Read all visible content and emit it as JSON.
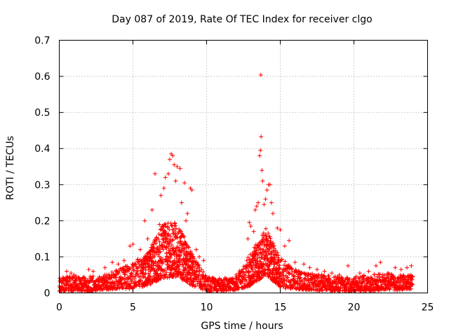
{
  "chart_data": {
    "type": "scatter",
    "title": "Day 087 of 2019, Rate Of TEC Index for receiver clgo",
    "xlabel": "GPS time / hours",
    "ylabel": "ROTI / TECUs",
    "xlim": [
      0,
      25
    ],
    "ylim": [
      0,
      0.7
    ],
    "xticks": [
      0,
      5,
      10,
      15,
      20,
      25
    ],
    "yticks": [
      0,
      0.1,
      0.2,
      0.3,
      0.4,
      0.5,
      0.6,
      0.7
    ],
    "xtick_labels": [
      "0",
      "5",
      "10",
      "15",
      "20",
      "25"
    ],
    "ytick_labels": [
      "0",
      "0.1",
      "0.2",
      "0.3",
      "0.4",
      "0.5",
      "0.6",
      "0.7"
    ],
    "grid": true,
    "marker": "+",
    "color": "#ff0000",
    "series": [
      {
        "name": "ROTI",
        "points": [
          [
            0.1,
            0.035
          ],
          [
            0.5,
            0.06
          ],
          [
            0.8,
            0.055
          ],
          [
            1.0,
            0.05
          ],
          [
            2.0,
            0.065
          ],
          [
            2.3,
            0.06
          ],
          [
            3.1,
            0.07
          ],
          [
            3.6,
            0.085
          ],
          [
            4.0,
            0.08
          ],
          [
            4.4,
            0.09
          ],
          [
            4.8,
            0.13
          ],
          [
            5.0,
            0.135
          ],
          [
            5.5,
            0.12
          ],
          [
            5.8,
            0.2
          ],
          [
            6.0,
            0.15
          ],
          [
            6.3,
            0.23
          ],
          [
            6.5,
            0.33
          ],
          [
            6.8,
            0.19
          ],
          [
            6.9,
            0.27
          ],
          [
            7.1,
            0.29
          ],
          [
            7.2,
            0.32
          ],
          [
            7.4,
            0.33
          ],
          [
            7.5,
            0.37
          ],
          [
            7.6,
            0.385
          ],
          [
            7.7,
            0.38
          ],
          [
            7.8,
            0.355
          ],
          [
            7.9,
            0.31
          ],
          [
            8.0,
            0.35
          ],
          [
            8.2,
            0.345
          ],
          [
            8.3,
            0.25
          ],
          [
            8.5,
            0.305
          ],
          [
            8.6,
            0.2
          ],
          [
            8.7,
            0.22
          ],
          [
            8.9,
            0.29
          ],
          [
            9.0,
            0.285
          ],
          [
            9.3,
            0.12
          ],
          [
            9.5,
            0.1
          ],
          [
            9.8,
            0.09
          ],
          [
            10.2,
            0.04
          ],
          [
            11.0,
            0.035
          ],
          [
            12.0,
            0.05
          ],
          [
            12.4,
            0.06
          ],
          [
            12.8,
            0.15
          ],
          [
            12.9,
            0.195
          ],
          [
            13.0,
            0.185
          ],
          [
            13.2,
            0.17
          ],
          [
            13.3,
            0.23
          ],
          [
            13.4,
            0.24
          ],
          [
            13.5,
            0.25
          ],
          [
            13.6,
            0.38
          ],
          [
            13.65,
            0.395
          ],
          [
            13.68,
            0.604
          ],
          [
            13.7,
            0.433
          ],
          [
            13.75,
            0.34
          ],
          [
            13.8,
            0.31
          ],
          [
            13.9,
            0.245
          ],
          [
            14.0,
            0.26
          ],
          [
            14.1,
            0.285
          ],
          [
            14.2,
            0.3
          ],
          [
            14.3,
            0.3
          ],
          [
            14.4,
            0.25
          ],
          [
            14.5,
            0.22
          ],
          [
            14.8,
            0.18
          ],
          [
            15.0,
            0.175
          ],
          [
            15.3,
            0.13
          ],
          [
            15.6,
            0.145
          ],
          [
            16.0,
            0.085
          ],
          [
            16.6,
            0.08
          ],
          [
            17.0,
            0.07
          ],
          [
            17.5,
            0.065
          ],
          [
            18.0,
            0.06
          ],
          [
            18.5,
            0.055
          ],
          [
            19.0,
            0.05
          ],
          [
            19.6,
            0.075
          ],
          [
            20.4,
            0.055
          ],
          [
            21.0,
            0.06
          ],
          [
            21.5,
            0.075
          ],
          [
            21.8,
            0.085
          ],
          [
            22.3,
            0.055
          ],
          [
            22.8,
            0.07
          ],
          [
            23.2,
            0.065
          ],
          [
            23.6,
            0.07
          ],
          [
            23.9,
            0.075
          ]
        ],
        "envelope": {
          "hours": [
            0,
            1,
            2,
            3,
            4,
            5,
            6,
            7,
            8,
            9,
            10,
            11,
            12,
            13,
            14,
            15,
            16,
            17,
            18,
            19,
            20,
            21,
            22,
            23,
            24
          ],
          "upper": [
            0.045,
            0.048,
            0.045,
            0.05,
            0.065,
            0.085,
            0.11,
            0.19,
            0.2,
            0.11,
            0.045,
            0.04,
            0.05,
            0.11,
            0.18,
            0.1,
            0.065,
            0.055,
            0.05,
            0.045,
            0.045,
            0.05,
            0.055,
            0.05,
            0.05
          ],
          "lower": [
            0.005,
            0.005,
            0.005,
            0.008,
            0.01,
            0.012,
            0.02,
            0.04,
            0.045,
            0.02,
            0.005,
            0.005,
            0.008,
            0.02,
            0.05,
            0.015,
            0.01,
            0.008,
            0.005,
            0.005,
            0.005,
            0.005,
            0.008,
            0.008,
            0.01
          ]
        }
      }
    ]
  }
}
